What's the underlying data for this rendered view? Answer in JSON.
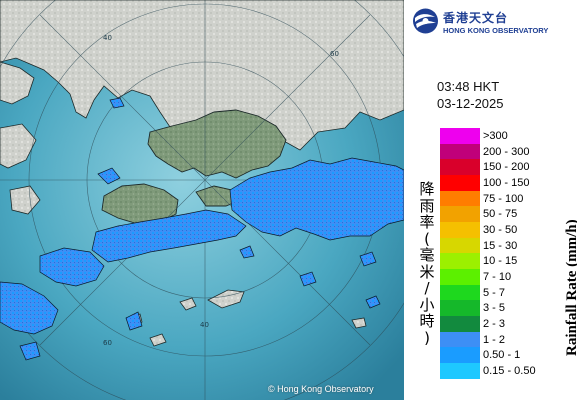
{
  "map": {
    "range_labels": [
      "40",
      "60",
      "40",
      "60"
    ],
    "copyright": "© Hong Kong Observatory"
  },
  "header": {
    "logo_zh": "香港天文台",
    "logo_en": "HONG KONG OBSERVATORY",
    "time": "03:48 HKT",
    "date": "03-12-2025"
  },
  "legend": {
    "title_en": "Rainfall Rate (mm/h)",
    "title_zh": [
      "降",
      "雨",
      "率",
      "(",
      "毫",
      "米",
      "/",
      "小",
      "時",
      ")"
    ],
    "items": [
      {
        "label": ">300",
        "color": "#ee00ee"
      },
      {
        "label": "200 - 300",
        "color": "#c0007a"
      },
      {
        "label": "150 - 200",
        "color": "#d9002b"
      },
      {
        "label": "100 - 150",
        "color": "#ff0000"
      },
      {
        "label": "75 - 100",
        "color": "#ff7d00"
      },
      {
        "label": "50 - 75",
        "color": "#f2a200"
      },
      {
        "label": "30 - 50",
        "color": "#f5c000"
      },
      {
        "label": "15 - 30",
        "color": "#d7d700"
      },
      {
        "label": "10 - 15",
        "color": "#9cf000"
      },
      {
        "label": "7 - 10",
        "color": "#5cf000"
      },
      {
        "label": "5 - 7",
        "color": "#1ed81e"
      },
      {
        "label": "3 - 5",
        "color": "#15b82a"
      },
      {
        "label": "2 - 3",
        "color": "#128a3e"
      },
      {
        "label": "1 - 2",
        "color": "#3d8ff5"
      },
      {
        "label": "0.50 - 1",
        "color": "#1a9cff"
      },
      {
        "label": "0.15 - 0.50",
        "color": "#1ec8ff"
      }
    ]
  }
}
